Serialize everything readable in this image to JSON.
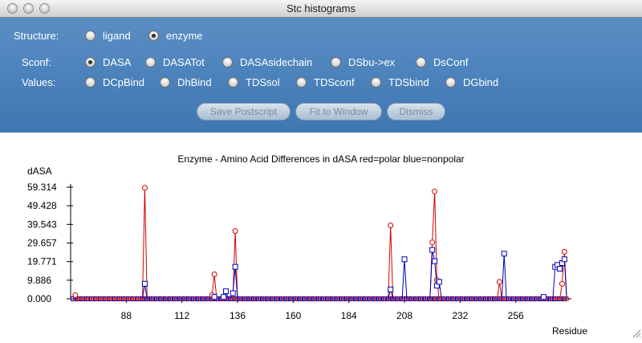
{
  "window": {
    "title": "Stc histograms"
  },
  "structure": {
    "label": "Structure:",
    "options": [
      {
        "label": "ligand",
        "selected": false
      },
      {
        "label": "enzyme",
        "selected": true
      }
    ]
  },
  "sconf": {
    "label": "Sconf:",
    "options": [
      {
        "label": "DASA",
        "selected": true
      },
      {
        "label": "DASATot",
        "selected": false
      },
      {
        "label": "DASAsidechain",
        "selected": false
      },
      {
        "label": "DSbu->ex",
        "selected": false
      },
      {
        "label": "DsConf",
        "selected": false
      }
    ]
  },
  "values": {
    "label": "Values:",
    "options": [
      {
        "label": "DCpBind",
        "selected": false
      },
      {
        "label": "DhBind",
        "selected": false
      },
      {
        "label": "TDSsol",
        "selected": false
      },
      {
        "label": "TDSconf",
        "selected": false
      },
      {
        "label": "TDSbind",
        "selected": false
      },
      {
        "label": "DGbind",
        "selected": false
      }
    ]
  },
  "buttons": {
    "save": "Save Postscript",
    "fit": "Fit to Window",
    "dismiss": "Dismiss"
  },
  "chart_data": {
    "type": "line",
    "title": "Enzyme - Amino Acid Differences in dASA red=polar blue=nonpolar",
    "xlabel": "Residue",
    "ylabel": "dASA",
    "xlim": [
      64,
      280
    ],
    "ylim": [
      0,
      59.314
    ],
    "x_ticks": [
      88,
      112,
      136,
      160,
      184,
      208,
      232,
      256
    ],
    "y_ticks": [
      "0.000",
      "9.886",
      "19.771",
      "29.657",
      "39.543",
      "49.428",
      "59.314"
    ],
    "colors": {
      "polar": "#d40000",
      "nonpolar": "#0000b4"
    },
    "series": [
      {
        "name": "polar",
        "marker": "circle",
        "points": [
          [
            65,
            0
          ],
          [
            66,
            2
          ],
          [
            67,
            0
          ],
          [
            95,
            0
          ],
          [
            96,
            59
          ],
          [
            97,
            0
          ],
          [
            124,
            0
          ],
          [
            125,
            2
          ],
          [
            126,
            13
          ],
          [
            127,
            0
          ],
          [
            134,
            0
          ],
          [
            135,
            36
          ],
          [
            136,
            0
          ],
          [
            201,
            0
          ],
          [
            202,
            39
          ],
          [
            203,
            0
          ],
          [
            219,
            0
          ],
          [
            220,
            30
          ],
          [
            221,
            57
          ],
          [
            222,
            10
          ],
          [
            223,
            0
          ],
          [
            248,
            0
          ],
          [
            249,
            9
          ],
          [
            250,
            0
          ],
          [
            275,
            0
          ],
          [
            276,
            8
          ],
          [
            277,
            25
          ],
          [
            278,
            0
          ]
        ]
      },
      {
        "name": "nonpolar",
        "marker": "square",
        "points": [
          [
            95,
            0
          ],
          [
            96,
            8
          ],
          [
            97,
            0
          ],
          [
            125,
            0
          ],
          [
            126,
            1
          ],
          [
            127,
            0
          ],
          [
            129,
            0
          ],
          [
            130,
            1
          ],
          [
            131,
            4
          ],
          [
            132,
            0
          ],
          [
            133,
            0
          ],
          [
            134,
            3
          ],
          [
            135,
            17
          ],
          [
            136,
            0
          ],
          [
            201,
            0
          ],
          [
            202,
            5
          ],
          [
            203,
            0
          ],
          [
            207,
            0
          ],
          [
            208,
            21
          ],
          [
            209,
            0
          ],
          [
            219,
            0
          ],
          [
            220,
            26
          ],
          [
            221,
            20
          ],
          [
            222,
            7
          ],
          [
            223,
            9
          ],
          [
            224,
            0
          ],
          [
            250,
            0
          ],
          [
            251,
            24
          ],
          [
            252,
            0
          ],
          [
            267,
            0
          ],
          [
            268,
            1
          ],
          [
            269,
            0
          ],
          [
            272,
            0
          ],
          [
            273,
            17
          ],
          [
            274,
            18
          ],
          [
            275,
            16
          ],
          [
            276,
            19
          ],
          [
            277,
            21
          ],
          [
            278,
            0
          ]
        ]
      }
    ]
  }
}
